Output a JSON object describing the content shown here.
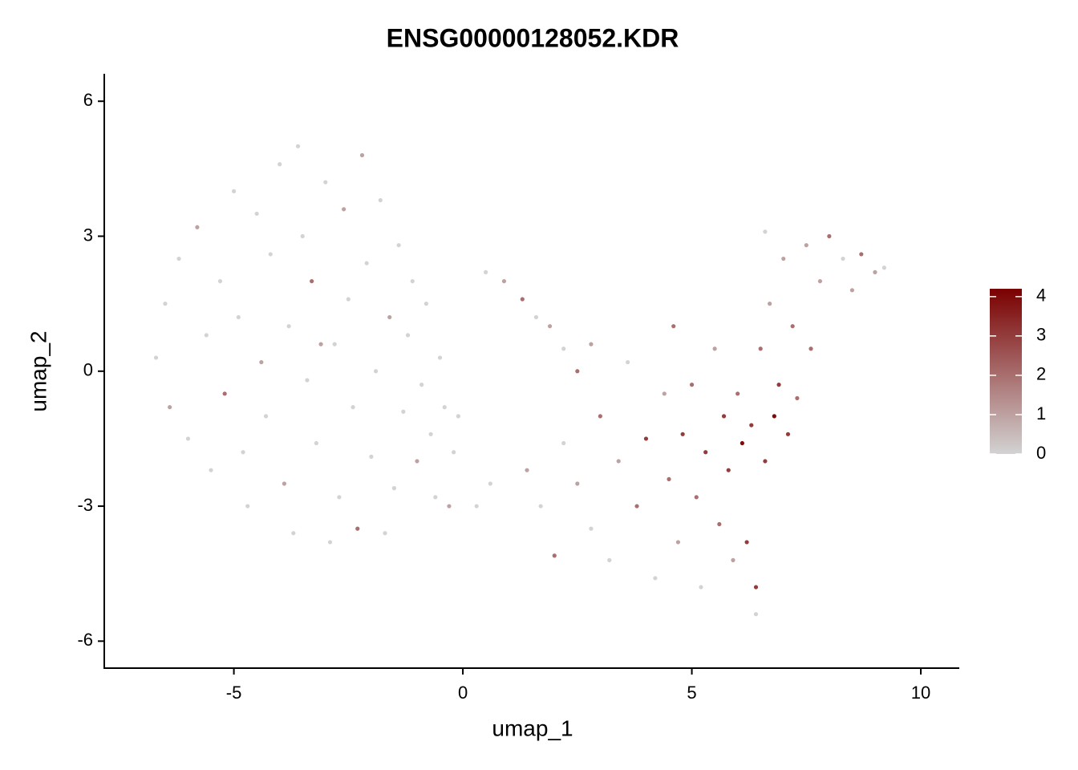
{
  "chart_data": {
    "type": "scatter",
    "title": "ENSG00000128052.KDR",
    "x_label": "umap_1",
    "y_label": "umap_2",
    "xlim": [
      -7.83,
      10.84
    ],
    "ylim": [
      -6.6,
      6.61
    ],
    "xticks": [
      -5,
      0,
      5,
      10
    ],
    "yticks": [
      -6,
      -3,
      0,
      3,
      6
    ],
    "color_low": "#d3d3d3",
    "color_high": "#7a0000",
    "colorlim": [
      0,
      4.2
    ],
    "colorticks": [
      0,
      1,
      2,
      3,
      4
    ],
    "x": [
      -6.5,
      -6.7,
      -6.4,
      -6.2,
      -6.0,
      -5.8,
      -5.6,
      -5.5,
      -5.3,
      -5.2,
      -5.0,
      -4.9,
      -4.8,
      -4.7,
      -4.5,
      -4.4,
      -4.3,
      -4.2,
      -4.0,
      -3.9,
      -3.8,
      -3.7,
      -3.6,
      -3.5,
      -3.4,
      -3.3,
      -3.2,
      -3.0,
      -2.9,
      -2.8,
      -2.7,
      -2.6,
      -2.5,
      -2.4,
      -2.3,
      -2.2,
      -2.1,
      -2.0,
      -1.9,
      -1.8,
      -1.7,
      -1.6,
      -1.5,
      -1.4,
      -1.3,
      -1.2,
      -1.1,
      -1.0,
      -0.9,
      -0.8,
      -0.7,
      -0.6,
      -0.5,
      -0.4,
      -0.3,
      -0.2,
      -0.1,
      0.3,
      0.6,
      -3.1,
      0.5,
      0.9,
      1.3,
      1.6,
      1.9,
      2.2,
      2.5,
      2.8,
      1.4,
      1.7,
      2.0,
      2.2,
      2.5,
      2.8,
      3.0,
      3.2,
      3.4,
      3.6,
      3.8,
      4.0,
      4.2,
      4.4,
      4.5,
      4.6,
      4.7,
      4.8,
      5.0,
      5.1,
      5.2,
      5.3,
      5.5,
      5.6,
      5.7,
      5.8,
      5.9,
      6.0,
      6.1,
      6.2,
      6.3,
      6.4,
      6.4,
      6.5,
      6.6,
      6.7,
      6.8,
      6.9,
      7.0,
      7.1,
      7.3,
      6.6,
      7.2,
      7.5,
      7.8,
      8.0,
      8.3,
      8.5,
      8.7,
      9.0,
      9.2,
      7.6
    ],
    "y": [
      1.5,
      0.3,
      -0.8,
      2.5,
      -1.5,
      3.2,
      0.8,
      -2.2,
      2.0,
      -0.5,
      4.0,
      1.2,
      -1.8,
      -3.0,
      3.5,
      0.2,
      -1.0,
      2.6,
      4.6,
      -2.5,
      1.0,
      -3.6,
      5.0,
      3.0,
      -0.2,
      2.0,
      -1.6,
      4.2,
      -3.8,
      0.6,
      -2.8,
      3.6,
      1.6,
      -0.8,
      -3.5,
      4.8,
      2.4,
      -1.9,
      0.0,
      3.8,
      -3.6,
      1.2,
      -2.6,
      2.8,
      -0.9,
      0.8,
      2.0,
      -2.0,
      -0.3,
      1.5,
      -1.4,
      -2.8,
      0.3,
      -0.8,
      -3.0,
      -1.8,
      -1.0,
      -3.0,
      -2.5,
      0.6,
      2.2,
      2.0,
      1.6,
      1.2,
      1.0,
      0.5,
      0.0,
      0.6,
      -2.2,
      -3.0,
      -4.1,
      -1.6,
      -2.5,
      -3.5,
      -1.0,
      -4.2,
      -2.0,
      0.2,
      -3.0,
      -1.5,
      -4.6,
      -0.5,
      -2.4,
      1.0,
      -3.8,
      -1.4,
      -0.3,
      -2.8,
      -4.8,
      -1.8,
      0.5,
      -3.4,
      -1.0,
      -2.2,
      -4.2,
      -0.5,
      -1.6,
      -3.8,
      -1.2,
      -4.8,
      -5.4,
      0.5,
      -2.0,
      1.5,
      -1.0,
      -0.3,
      2.5,
      -1.4,
      -0.6,
      3.1,
      1.0,
      2.8,
      2.0,
      3.0,
      2.5,
      1.8,
      2.6,
      2.2,
      2.3,
      0.5
    ],
    "values": [
      0,
      0,
      1,
      0,
      0,
      1,
      0,
      0,
      0,
      2,
      0,
      0,
      0,
      0,
      0,
      1,
      0,
      0,
      0,
      1,
      0,
      0,
      0,
      0,
      0,
      2,
      0,
      0,
      0,
      0,
      0,
      1,
      0,
      0,
      2,
      1,
      0,
      0,
      0,
      0,
      0,
      1,
      0,
      0,
      0,
      0,
      0,
      1,
      0,
      0,
      0,
      0,
      0,
      0,
      1,
      0,
      0,
      0,
      0,
      1,
      0,
      1,
      2,
      0,
      1,
      0,
      2,
      1,
      1,
      0,
      2,
      0,
      1,
      0,
      2,
      0,
      1,
      0,
      2,
      3,
      0,
      1,
      2,
      2,
      1,
      3,
      2,
      2,
      0,
      3,
      1,
      2,
      3,
      3,
      1,
      2,
      4,
      3,
      3,
      3,
      0,
      2,
      3,
      1,
      4,
      3,
      1,
      3,
      2,
      0,
      2,
      1,
      1,
      2,
      0,
      1,
      2,
      1,
      0,
      2
    ]
  }
}
